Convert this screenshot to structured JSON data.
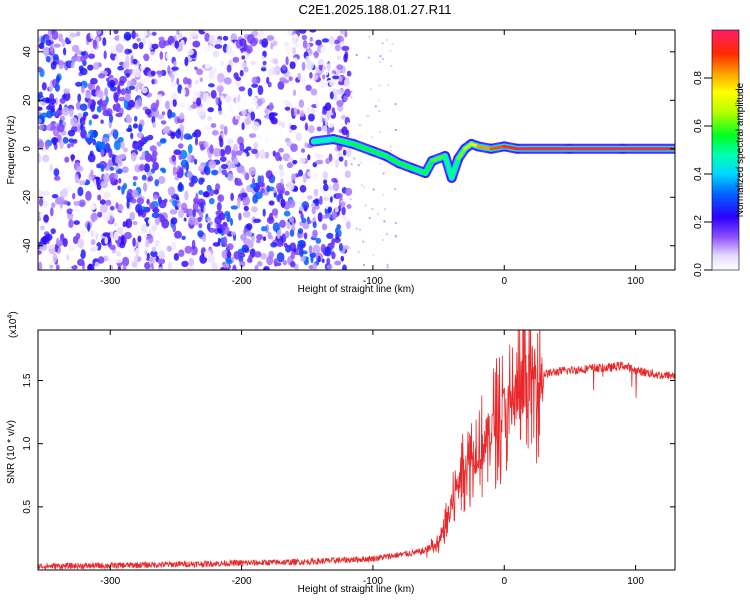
{
  "title": "C2E1.2025.188.01.27.R11",
  "chart_data": [
    {
      "type": "heatmap",
      "xlabel": "Height of straight line (km)",
      "ylabel": "Frequency (Hz)",
      "xlim": [
        -355,
        130
      ],
      "ylim": [
        -50,
        49
      ],
      "x_ticks": [
        -300,
        -200,
        -100,
        0,
        100
      ],
      "x_tick_labels": [
        "-300",
        "-200",
        "-100",
        "0",
        "100"
      ],
      "y_ticks": [
        -40,
        -20,
        0,
        20,
        40
      ],
      "y_tick_labels": [
        "-40",
        "-20",
        "0",
        "20",
        "40"
      ],
      "colorbar": {
        "label": "Normalized spectral amplitude",
        "range": [
          0,
          1
        ],
        "ticks": [
          0.0,
          0.2,
          0.4,
          0.6,
          0.8
        ],
        "tick_labels": [
          "0.0",
          "0.2",
          "0.4",
          "0.6",
          "0.8"
        ]
      },
      "noise_region_x": [
        -355,
        -118
      ],
      "signal_track": [
        {
          "x": -145,
          "y": 3,
          "amp": 0.45
        },
        {
          "x": -130,
          "y": 4,
          "amp": 0.5
        },
        {
          "x": -115,
          "y": 2,
          "amp": 0.55
        },
        {
          "x": -100,
          "y": -1,
          "amp": 0.55
        },
        {
          "x": -90,
          "y": -3,
          "amp": 0.55
        },
        {
          "x": -80,
          "y": -6,
          "amp": 0.55
        },
        {
          "x": -70,
          "y": -8,
          "amp": 0.55
        },
        {
          "x": -60,
          "y": -10,
          "amp": 0.5
        },
        {
          "x": -55,
          "y": -5,
          "amp": 0.6
        },
        {
          "x": -45,
          "y": -3,
          "amp": 0.6
        },
        {
          "x": -40,
          "y": -12,
          "amp": 0.4
        },
        {
          "x": -35,
          "y": -4,
          "amp": 0.6
        },
        {
          "x": -30,
          "y": 0,
          "amp": 0.65
        },
        {
          "x": -25,
          "y": 2,
          "amp": 0.7
        },
        {
          "x": -20,
          "y": 1,
          "amp": 0.8
        },
        {
          "x": -10,
          "y": 0,
          "amp": 0.85
        },
        {
          "x": 0,
          "y": 1,
          "amp": 0.9
        },
        {
          "x": 10,
          "y": 0,
          "amp": 0.95
        },
        {
          "x": 50,
          "y": 0,
          "amp": 0.97
        },
        {
          "x": 90,
          "y": 0,
          "amp": 0.97
        },
        {
          "x": 130,
          "y": 0,
          "amp": 0.97
        }
      ]
    },
    {
      "type": "line",
      "xlabel": "Height of straight line (km)",
      "ylabel": "SNR (10 * v/v)",
      "y_multiplier_label": "(x10",
      "y_multiplier_exponent": "4",
      "y_multiplier_suffix": ")",
      "xlim": [
        -355,
        130
      ],
      "ylim": [
        0,
        19000
      ],
      "x_ticks": [
        -300,
        -200,
        -100,
        0,
        100
      ],
      "x_tick_labels": [
        "-300",
        "-200",
        "-100",
        "0",
        "100"
      ],
      "y_ticks": [
        5000,
        10000,
        15000
      ],
      "y_tick_labels": [
        "0.5",
        "1.0",
        "1.5"
      ],
      "color": "#e8282a",
      "series": [
        {
          "x": [
            -355,
            -300,
            -250,
            -200,
            -150,
            -100,
            -80,
            -60,
            -50,
            -45,
            -40,
            -35,
            -30,
            -25,
            -20,
            -15,
            -10,
            -5,
            0,
            5,
            10,
            20,
            30,
            40,
            50,
            60,
            70,
            80,
            85,
            90,
            95,
            100,
            110,
            120,
            130
          ],
          "y": [
            300,
            350,
            450,
            550,
            650,
            900,
            1200,
            1500,
            2000,
            3500,
            5000,
            7000,
            8500,
            9000,
            9500,
            10000,
            11000,
            12000,
            12500,
            13000,
            14000,
            15000,
            15500,
            15700,
            15800,
            15900,
            16000,
            16000,
            16100,
            16200,
            16000,
            15800,
            15600,
            15400,
            15400
          ]
        }
      ]
    }
  ]
}
